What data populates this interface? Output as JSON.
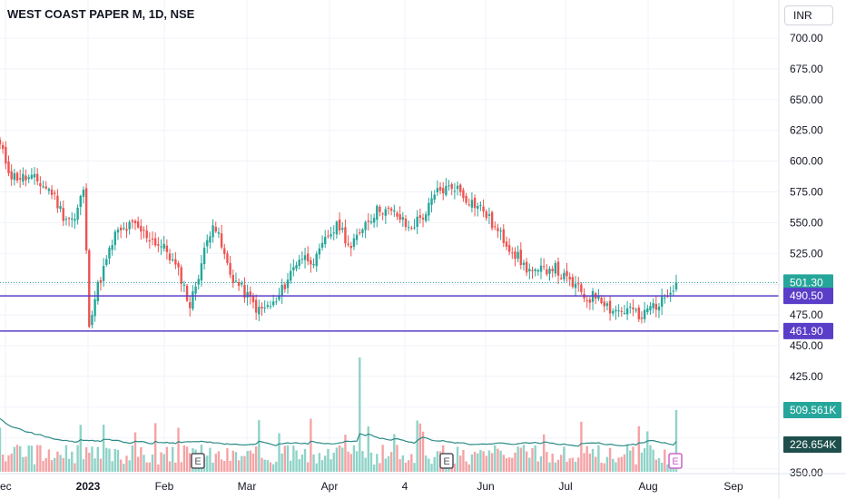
{
  "header": {
    "title": "WEST COAST PAPER M, 1D, NSE",
    "currency": "INR"
  },
  "colors": {
    "up": "#26a69a",
    "down": "#ef5350",
    "up_volume": "#8fd3c8",
    "down_volume": "#f5a3a5",
    "line": "#5b3ec8",
    "ma": "#2b8a85"
  },
  "chart_data": {
    "type": "candlestick",
    "title": "WEST COAST PAPER M, 1D, NSE",
    "price_axis": {
      "ticks": [
        "700.00",
        "675.00",
        "650.00",
        "625.00",
        "600.00",
        "575.00",
        "550.00",
        "525.00",
        "475.00",
        "450.00",
        "425.00",
        "350.00"
      ],
      "range": [
        345,
        716
      ]
    },
    "time_axis": {
      "labels": [
        "ec",
        "2023",
        "Feb",
        "Mar",
        "Apr",
        "4",
        "Jun",
        "Jul",
        "Aug",
        "Sep"
      ]
    },
    "price_labels": [
      {
        "text": "501.30",
        "value": 501.3,
        "style": "last"
      },
      {
        "text": "490.50",
        "value": 490.5,
        "style": "level"
      },
      {
        "text": "461.90",
        "value": 461.9,
        "style": "level"
      }
    ],
    "volume_labels": [
      {
        "text": "509.561K",
        "style": "volume"
      },
      {
        "text": "226.654K",
        "style": "ma"
      }
    ],
    "horizontal_lines": [
      490.5,
      461.9
    ],
    "last_price": 501.3,
    "event_markers": [
      "E",
      "E",
      "E"
    ],
    "ohlc_key_points": [
      [
        "Dec",
        610
      ],
      [
        "Dec",
        585
      ],
      [
        "Dec",
        575
      ],
      [
        "Dec",
        560
      ],
      [
        "Jan",
        470
      ],
      [
        "Jan",
        505
      ],
      [
        "Jan",
        555
      ],
      [
        "Jan",
        540
      ],
      [
        "Feb",
        475
      ],
      [
        "Feb",
        540
      ],
      [
        "Feb",
        560
      ],
      [
        "Feb",
        505
      ],
      [
        "Mar",
        475
      ],
      [
        "Mar",
        485
      ],
      [
        "Mar",
        528
      ],
      [
        "Mar",
        495
      ],
      [
        "Apr",
        530
      ],
      [
        "Apr",
        560
      ],
      [
        "Apr",
        575
      ],
      [
        "Apr",
        550
      ],
      [
        "May",
        575
      ],
      [
        "May",
        575
      ],
      [
        "May",
        555
      ],
      [
        "May",
        520
      ],
      [
        "Jun",
        515
      ],
      [
        "Jun",
        500
      ],
      [
        "Jun",
        525
      ],
      [
        "Jun",
        515
      ],
      [
        "Jul",
        485
      ],
      [
        "Jul",
        475
      ],
      [
        "Jul",
        480
      ],
      [
        "Jul",
        480
      ],
      [
        "Aug",
        470
      ],
      [
        "Aug",
        480
      ],
      [
        "Aug",
        485
      ],
      [
        "Aug",
        501.3
      ]
    ]
  }
}
